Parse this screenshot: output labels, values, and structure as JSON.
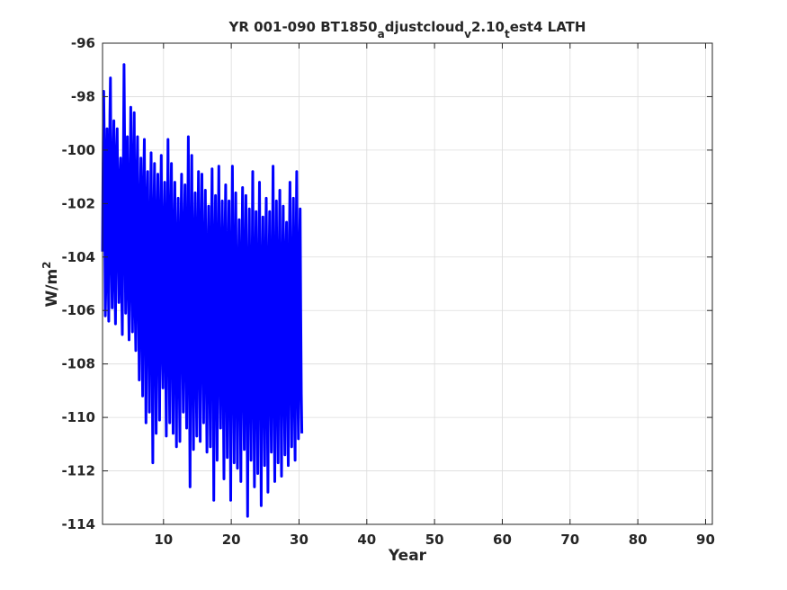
{
  "chart_data": {
    "type": "line",
    "title": {
      "parts": [
        {
          "text": "YR 001-090 BT1850",
          "shift": "base"
        },
        {
          "text": "a",
          "shift": "sub"
        },
        {
          "text": "djustcloud",
          "shift": "base"
        },
        {
          "text": "v",
          "shift": "sub"
        },
        {
          "text": "2.10",
          "shift": "base"
        },
        {
          "text": "t",
          "shift": "sub"
        },
        {
          "text": "est4 LATH",
          "shift": "base"
        }
      ]
    },
    "xlabel": "Year",
    "ylabel": {
      "base": "W/m",
      "sup": "2"
    },
    "xlim": [
      1,
      91
    ],
    "ylim": [
      -114,
      -96
    ],
    "xticks": [
      10,
      20,
      30,
      40,
      50,
      60,
      70,
      80,
      90
    ],
    "yticks": [
      -96,
      -98,
      -100,
      -102,
      -104,
      -106,
      -108,
      -110,
      -112,
      -114
    ],
    "grid": true,
    "series": [
      {
        "color": "#0000ff",
        "note_sampling": "monthly",
        "x_start": 1.0,
        "x_step": 0.08333,
        "values": [
          -103.8,
          -100.5,
          -97.8,
          -99.6,
          -103.2,
          -106.2,
          -104.8,
          -101.6,
          -99.2,
          -101.8,
          -104.6,
          -106.4,
          -102.1,
          -98.7,
          -97.3,
          -100.9,
          -104.3,
          -105.9,
          -103.5,
          -100.2,
          -98.9,
          -102.4,
          -105.1,
          -106.5,
          -102.8,
          -99.9,
          -99.2,
          -101.6,
          -104.1,
          -105.7,
          -103.6,
          -100.9,
          -100.3,
          -102.7,
          -105.4,
          -106.9,
          -103.2,
          -100.4,
          -96.8,
          -99.4,
          -103.5,
          -106.1,
          -104.2,
          -101.3,
          -99.5,
          -102.1,
          -105.6,
          -107.1,
          -104.3,
          -100.6,
          -98.4,
          -101.7,
          -105.2,
          -106.8,
          -103.6,
          -100.1,
          -98.6,
          -102.2,
          -106.2,
          -107.5,
          -104.5,
          -100.9,
          -99.5,
          -102.3,
          -106.1,
          -108.6,
          -105.2,
          -101.7,
          -100.3,
          -103.2,
          -107.1,
          -109.2,
          -105.3,
          -101.1,
          -99.6,
          -102.8,
          -106.9,
          -110.2,
          -106.2,
          -101.8,
          -100.8,
          -103.5,
          -107.3,
          -109.8,
          -105.6,
          -102.1,
          -100.1,
          -103.1,
          -107.8,
          -111.7,
          -106.8,
          -102.5,
          -100.5,
          -103.8,
          -107.4,
          -110.6,
          -106.1,
          -102.2,
          -100.9,
          -103.7,
          -107.9,
          -110.1,
          -106.5,
          -101.9,
          -100.2,
          -103.5,
          -107.5,
          -108.9,
          -105.7,
          -102.6,
          -101.2,
          -104.1,
          -108.2,
          -110.7,
          -106.3,
          -102.3,
          -99.6,
          -103.2,
          -107.8,
          -110.2,
          -105.9,
          -102.1,
          -100.5,
          -103.6,
          -108.1,
          -110.6,
          -106.6,
          -102.8,
          -101.2,
          -104.2,
          -108.6,
          -111.1,
          -106.8,
          -103.2,
          -101.8,
          -104.7,
          -108.9,
          -110.9,
          -106.4,
          -102.6,
          -100.9,
          -103.9,
          -107.6,
          -109.8,
          -106.2,
          -102.7,
          -101.3,
          -104.3,
          -108.3,
          -110.4,
          -106.7,
          -102.5,
          -99.5,
          -103.8,
          -108.9,
          -112.6,
          -107.2,
          -102.9,
          -100.2,
          -104.1,
          -108.6,
          -111.2,
          -106.6,
          -103.1,
          -101.6,
          -104.6,
          -108.8,
          -110.7,
          -106.9,
          -102.8,
          -100.8,
          -104.1,
          -108.4,
          -110.9,
          -106.3,
          -102.5,
          -100.9,
          -104.2,
          -108.2,
          -110.2,
          -106.8,
          -103.3,
          -101.5,
          -104.9,
          -108.7,
          -111.3,
          -107.1,
          -103.5,
          -102.1,
          -105.2,
          -109.1,
          -111.1,
          -106.5,
          -102.6,
          -100.7,
          -103.8,
          -108.5,
          -113.1,
          -107.3,
          -103.6,
          -101.7,
          -105.1,
          -109.2,
          -111.6,
          -107.6,
          -103.1,
          -100.6,
          -104.2,
          -108.5,
          -110.4,
          -107.2,
          -103.4,
          -101.9,
          -104.6,
          -109.3,
          -112.3,
          -107.5,
          -103.2,
          -101.3,
          -104.5,
          -108.8,
          -111.5,
          -107.9,
          -103.7,
          -101.9,
          -105.3,
          -109.4,
          -113.1,
          -107.4,
          -103.1,
          -100.6,
          -104.3,
          -108.9,
          -111.7,
          -107.5,
          -103.8,
          -101.6,
          -105.1,
          -109.4,
          -111.9,
          -107.7,
          -104.2,
          -102.6,
          -105.3,
          -109.6,
          -112.4,
          -107.6,
          -103.4,
          -101.4,
          -104.8,
          -109.1,
          -111.2,
          -107.7,
          -103.6,
          -101.7,
          -105.6,
          -109.8,
          -113.7,
          -107.9,
          -104.1,
          -102.2,
          -105.3,
          -109.3,
          -111.6,
          -107.4,
          -103.9,
          -100.8,
          -104.6,
          -109.5,
          -112.6,
          -107.8,
          -104.2,
          -102.3,
          -105.4,
          -109.7,
          -112.1,
          -107.4,
          -103.8,
          -101.2,
          -104.6,
          -109.4,
          -113.3,
          -108.1,
          -104.2,
          -102.5,
          -105.8,
          -109.6,
          -111.8,
          -107.6,
          -103.6,
          -101.8,
          -105.2,
          -109.9,
          -112.8,
          -107.9,
          -104.1,
          -102.3,
          -105.6,
          -109.2,
          -111.3,
          -107.3,
          -103.3,
          -100.6,
          -104.8,
          -109.6,
          -112.4,
          -107.6,
          -104.3,
          -101.9,
          -105.5,
          -109.8,
          -111.7,
          -107.8,
          -103.7,
          -101.5,
          -105.3,
          -109.3,
          -112.2,
          -107.5,
          -103.8,
          -102.1,
          -105.7,
          -109.4,
          -111.4,
          -107.2,
          -103.6,
          -102.7,
          -106.2,
          -109.5,
          -111.8,
          -107.4,
          -103.2,
          -101.2,
          -104.5,
          -108.9,
          -111.1,
          -107.5,
          -103.9,
          -101.8,
          -105.4,
          -109.7,
          -111.6,
          -107.2,
          -103.2,
          -100.8,
          -104.9,
          -109.2,
          -110.8,
          -107.4,
          -103.5,
          -102.2,
          -105.8,
          -109.1,
          -110.6
        ],
        "values_note": "Approximate monthly anomalies read from the plot; the drawing routine interpolates between these samples."
      }
    ]
  }
}
